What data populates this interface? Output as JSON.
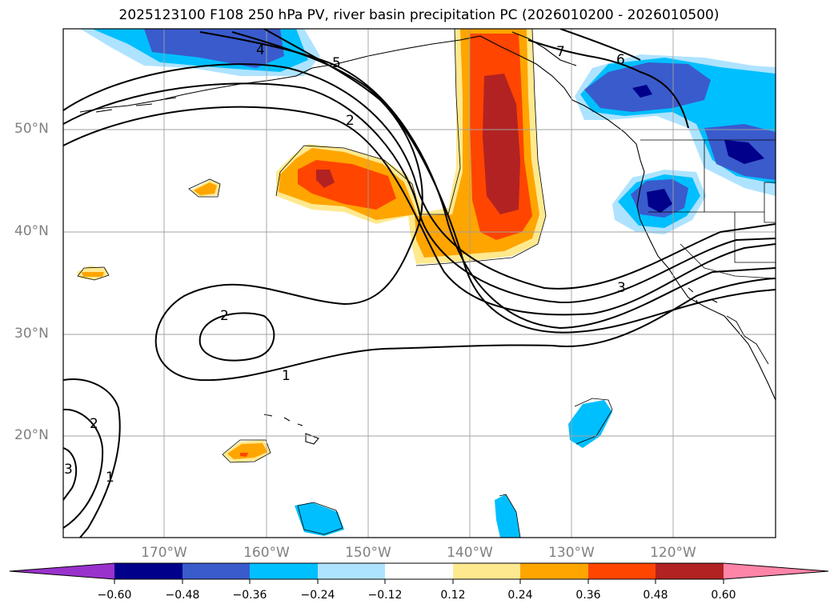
{
  "title": "2025123100 F108 250 hPa PV, river basin precipitation PC (2026010200 - 2026010500)",
  "lat_labels": [
    "50°N",
    "40°N",
    "30°N",
    "20°N"
  ],
  "lon_labels": [
    "170°W",
    "160°W",
    "150°W",
    "140°W",
    "130°W",
    "120°W"
  ],
  "colorbar": {
    "ticks": [
      "−0.60",
      "−0.48",
      "−0.36",
      "−0.24",
      "−0.12",
      "0.12",
      "0.24",
      "0.36",
      "0.48",
      "0.60"
    ],
    "colors": [
      "#9932CC",
      "#00008B",
      "#3A5BCC",
      "#00BFFF",
      "#AEE3FF",
      "#FFFFFF",
      "#FFE98F",
      "#FFA500",
      "#FF4500",
      "#B22222",
      "#FF85A8"
    ]
  },
  "contour_labels": [
    "4",
    "5",
    "7",
    "6",
    "2",
    "3",
    "2",
    "1",
    "2",
    "3",
    "1"
  ]
}
